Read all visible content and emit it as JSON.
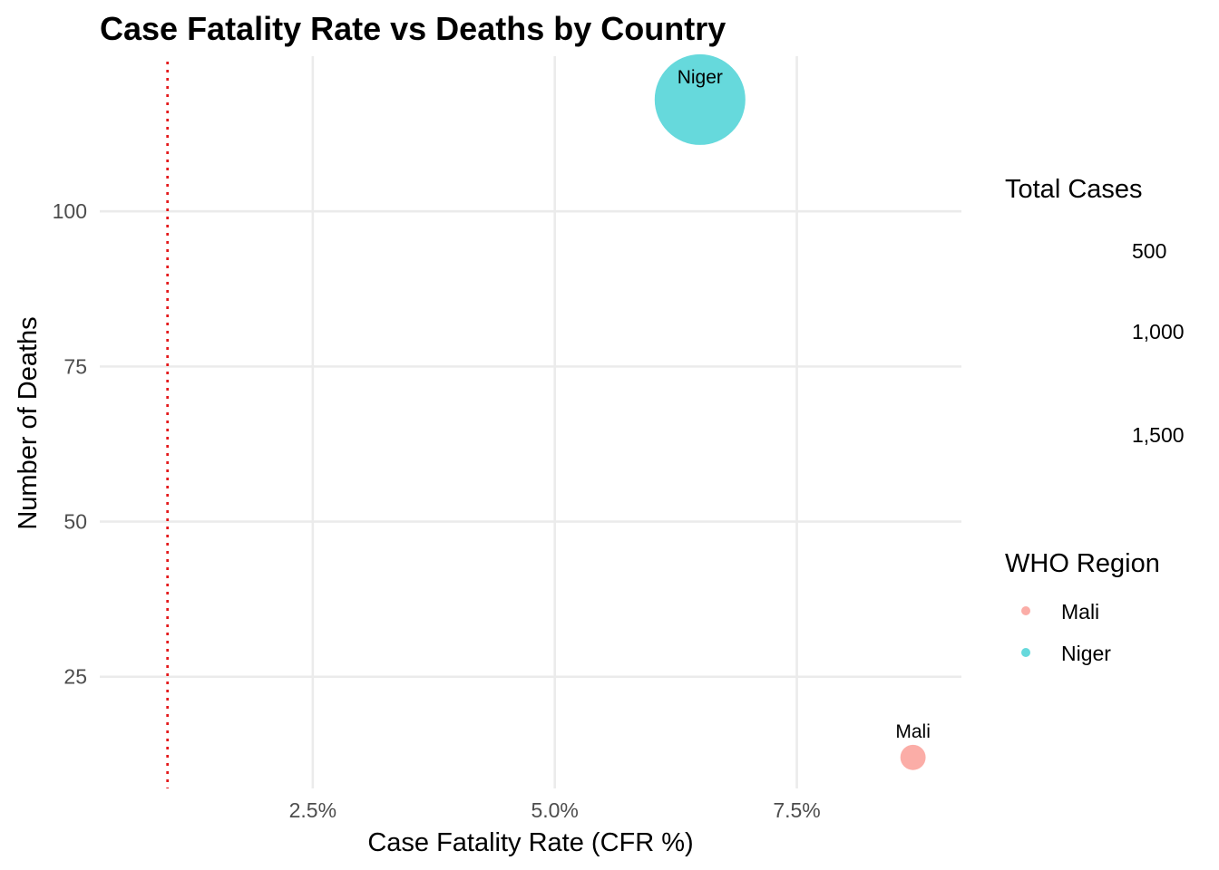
{
  "chart_data": {
    "type": "scatter",
    "title": "Case Fatality Rate vs Deaths by Country",
    "xlabel": "Case Fatality Rate (CFR %)",
    "ylabel": "Number of Deaths",
    "xlim": [
      0.3,
      9.2
    ],
    "ylim": [
      7,
      125
    ],
    "x_ticks": [
      2.5,
      5.0,
      7.5
    ],
    "x_tick_labels": [
      "2.5%",
      "5.0%",
      "7.5%"
    ],
    "y_ticks": [
      25,
      50,
      75,
      100
    ],
    "y_tick_labels": [
      "25",
      "50",
      "75",
      "100"
    ],
    "grid": true,
    "reference_line": {
      "x": 1.0,
      "style": "dotted",
      "color": "#e41a1c"
    },
    "series": [
      {
        "name": "Mali",
        "x": 8.7,
        "y": 12,
        "cases": 140,
        "color": "#F8766D",
        "label": "Mali"
      },
      {
        "name": "Niger",
        "x": 6.5,
        "y": 118,
        "cases": 1800,
        "color": "#00BFC4",
        "label": "Niger"
      }
    ],
    "legend": {
      "placement": "right",
      "size_title": "Total Cases",
      "size_breaks": [
        {
          "value": 500,
          "label": "500"
        },
        {
          "value": 1000,
          "label": "1,000"
        },
        {
          "value": 1500,
          "label": "1,500"
        }
      ],
      "color_title": "WHO Region",
      "color_entries": [
        {
          "label": "Mali",
          "color": "#F8766D"
        },
        {
          "label": "Niger",
          "color": "#00BFC4"
        }
      ]
    }
  }
}
